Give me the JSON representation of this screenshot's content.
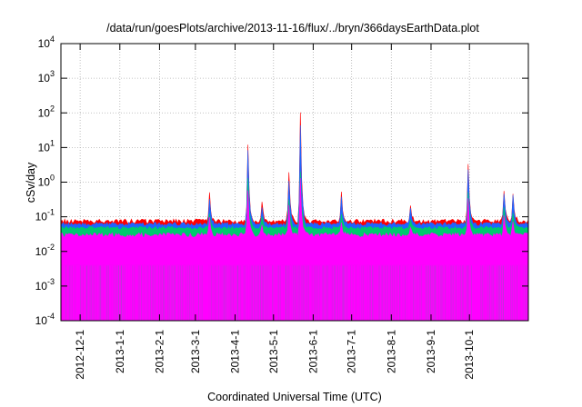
{
  "chart_data": {
    "type": "area",
    "title": "/data/run/goesPlots/archive/2013-11-16/flux/../bryn/366daysEarthData.plot",
    "xlabel": "Coordinated Universal Time (UTC)",
    "ylabel": "cSv/day",
    "yscale": "log",
    "ylim": [
      0.0001,
      10000
    ],
    "xlim": [
      "2012-11-16",
      "2013-11-16"
    ],
    "grid": true,
    "x_ticks": [
      "2012-12-1",
      "2013-1-1",
      "2013-2-1",
      "2013-3-1",
      "2013-4-1",
      "2013-5-1",
      "2013-6-1",
      "2013-7-1",
      "2013-8-1",
      "2013-9-1",
      "2013-10-1"
    ],
    "y_ticks": [
      {
        "value": 0.0001,
        "base": "10",
        "exp": "-4"
      },
      {
        "value": 0.001,
        "base": "10",
        "exp": "-3"
      },
      {
        "value": 0.01,
        "base": "10",
        "exp": "-2"
      },
      {
        "value": 0.1,
        "base": "10",
        "exp": "-1"
      },
      {
        "value": 1,
        "base": "10",
        "exp": "0"
      },
      {
        "value": 10,
        "base": "10",
        "exp": "1"
      },
      {
        "value": 100,
        "base": "10",
        "exp": "2"
      },
      {
        "value": 1000,
        "base": "10",
        "exp": "3"
      },
      {
        "value": 10000,
        "base": "10",
        "exp": "4"
      }
    ],
    "baseline": {
      "red": 0.075,
      "blue": 0.062,
      "green": 0.048,
      "magenta_top": 0.03,
      "magenta_bottom": 0.004
    },
    "peaks": [
      {
        "date": "2013-03-12",
        "red": 0.45,
        "blue": 0.32,
        "green": 0.12,
        "magenta": 0.09
      },
      {
        "date": "2013-04-11",
        "red": 11,
        "blue": 8,
        "green": 1.2,
        "magenta": 0.6
      },
      {
        "date": "2013-04-22",
        "red": 0.25,
        "blue": 0.2,
        "green": 0.1,
        "magenta": 0.06
      },
      {
        "date": "2013-05-13",
        "red": 1.7,
        "blue": 1.2,
        "green": 0.3,
        "magenta": 0.2
      },
      {
        "date": "2013-05-22",
        "red": 100,
        "blue": 40,
        "green": 2,
        "magenta": 1.2
      },
      {
        "date": "2013-06-23",
        "red": 0.5,
        "blue": 0.35,
        "green": 0.12,
        "magenta": 0.07
      },
      {
        "date": "2013-08-16",
        "red": 0.22,
        "blue": 0.17,
        "green": 0.08,
        "magenta": 0.05
      },
      {
        "date": "2013-09-30",
        "red": 3,
        "blue": 2.2,
        "green": 0.5,
        "magenta": 0.3
      },
      {
        "date": "2013-10-28",
        "red": 0.65,
        "blue": 0.5,
        "green": 0.18,
        "magenta": 0.1
      },
      {
        "date": "2013-11-04",
        "red": 0.5,
        "blue": 0.38,
        "green": 0.13,
        "magenta": 0.08
      }
    ],
    "dropout_ranges": [
      [
        "2013-03-07",
        "2013-03-10"
      ],
      [
        "2013-10-03",
        "2013-10-08"
      ]
    ],
    "colors": {
      "red": "#ff0000",
      "blue": "#1e64ff",
      "green": "#00c86e",
      "magenta": "#ff00ff",
      "grid": "#b0b0b0",
      "axis": "#000000"
    }
  }
}
